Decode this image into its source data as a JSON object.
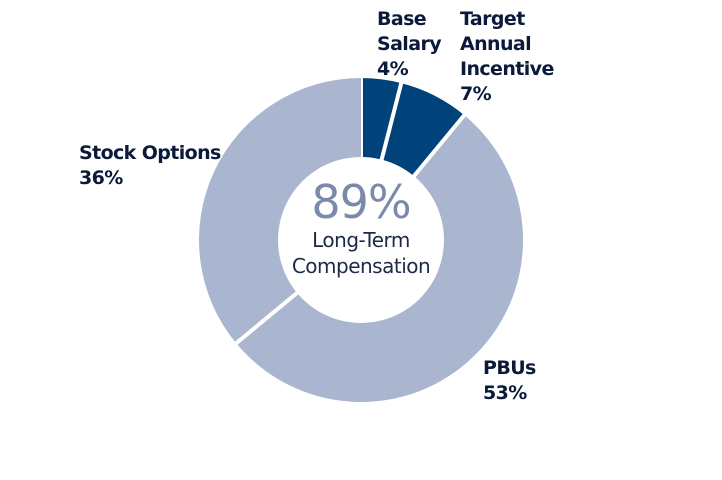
{
  "chart_data": {
    "type": "pie",
    "title": "",
    "center": {
      "value": "89%",
      "label": "Long-Term Compensation"
    },
    "slices": [
      {
        "label": "Base Salary",
        "value": 4,
        "value_text": "4%",
        "color": "#00427a"
      },
      {
        "label": "Target Annual Incentive",
        "value": 7,
        "value_text": "7%",
        "color": "#00427a"
      },
      {
        "label": "PBUs",
        "value": 53,
        "value_text": "53%",
        "color": "#aab6cf"
      },
      {
        "label": "Stock Options",
        "value": 36,
        "value_text": "36%",
        "color": "#aab6cf"
      }
    ],
    "label_lines": {
      "base_salary": [
        "Base",
        "Salary"
      ],
      "target_annual_incentive": [
        "Target",
        "Annual",
        "Incentive"
      ],
      "pbus": [
        "PBUs"
      ],
      "stock_options": [
        "Stock Options"
      ],
      "center_label": [
        "Long-Term",
        "Compensation"
      ]
    }
  }
}
